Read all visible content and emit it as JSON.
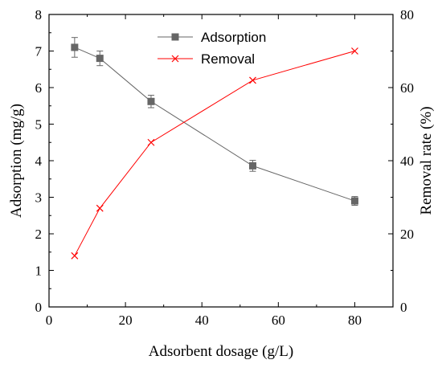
{
  "chart_data": {
    "type": "line",
    "xlabel": "Adsorbent dosage (g/L)",
    "ylabel_left": "Adsorption (mg/g)",
    "ylabel_right": "Removal rate (%)",
    "xlim": [
      0,
      90
    ],
    "ylim_left": [
      0,
      8
    ],
    "ylim_right": [
      0,
      80
    ],
    "x_ticks": [
      "0",
      "20",
      "40",
      "60",
      "80"
    ],
    "y_left_ticks": [
      "0",
      "1",
      "2",
      "3",
      "4",
      "5",
      "6",
      "7",
      "8"
    ],
    "y_right_ticks": [
      "0",
      "20",
      "40",
      "60",
      "80"
    ],
    "grid": false,
    "legend_position": "top-center",
    "series": [
      {
        "name": "Adsorption",
        "axis": "left",
        "color": "#666666",
        "marker": "square",
        "x": [
          6.7,
          13.3,
          26.7,
          53.3,
          80
        ],
        "y": [
          7.1,
          6.8,
          5.62,
          3.86,
          2.9
        ],
        "error": [
          0.27,
          0.2,
          0.17,
          0.15,
          0.12
        ]
      },
      {
        "name": "Removal",
        "axis": "right",
        "color": "#ff0000",
        "marker": "x",
        "x": [
          6.7,
          13.3,
          26.7,
          53.3,
          80
        ],
        "y": [
          14,
          27,
          45,
          62,
          70
        ]
      }
    ]
  }
}
